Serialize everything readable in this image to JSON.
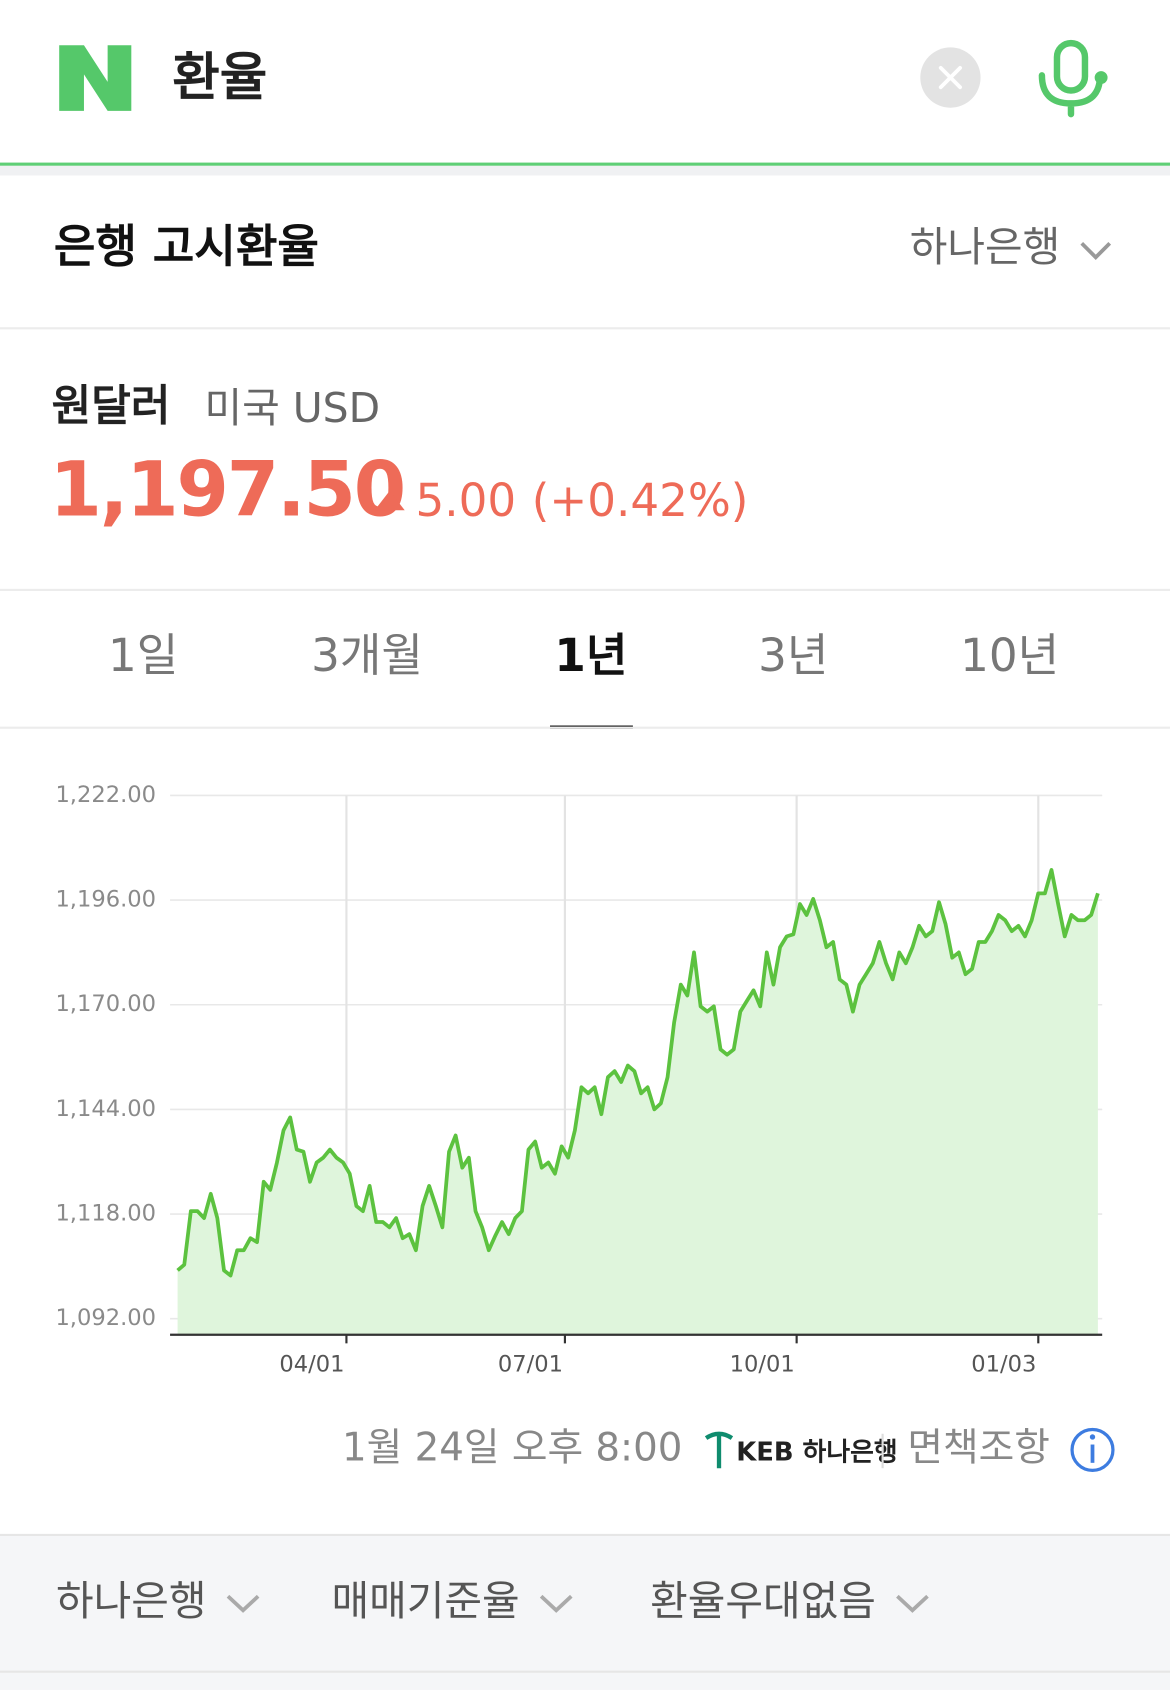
{
  "header": {
    "query": "환율"
  },
  "section": {
    "title": "은행 고시환율",
    "bank": "하나은행"
  },
  "quote": {
    "name": "원달러",
    "country": "미국 USD",
    "price": "1,197.50",
    "change": "5.00",
    "change_percent": "(+0.42%)"
  },
  "tabs": [
    {
      "label": "1일"
    },
    {
      "label": "3개월"
    },
    {
      "label": "1년",
      "selected": true
    },
    {
      "label": "3년"
    },
    {
      "label": "10년"
    }
  ],
  "chart_data": {
    "type": "line",
    "color": "#5cc23f",
    "fill": "#dff5dc",
    "grid": true,
    "values": [
      1104,
      1105.4,
      1118.7,
      1118.7,
      1117,
      1123,
      1117,
      1104,
      1102.7,
      1109,
      1109,
      1112,
      1111,
      1126,
      1124,
      1130.8,
      1138.8,
      1142,
      1134,
      1133.5,
      1126,
      1130.8,
      1132,
      1134,
      1132,
      1130.8,
      1128,
      1120,
      1118.7,
      1125,
      1116,
      1116,
      1114.7,
      1117,
      1112,
      1113,
      1109,
      1120,
      1125,
      1120,
      1114.7,
      1133.5,
      1137.5,
      1129.5,
      1132,
      1118.7,
      1114.7,
      1109,
      1112.7,
      1116,
      1113,
      1117,
      1118.7,
      1134,
      1136,
      1129.5,
      1130.8,
      1128,
      1134.8,
      1132,
      1138.8,
      1149.5,
      1148,
      1149.5,
      1142.8,
      1152,
      1153.5,
      1150.8,
      1154.9,
      1153.5,
      1148,
      1149.5,
      1144,
      1145.5,
      1152,
      1165.6,
      1175,
      1172.3,
      1183,
      1169.6,
      1168.3,
      1169.6,
      1158.9,
      1157.6,
      1158.9,
      1168.3,
      1171,
      1173.6,
      1169.6,
      1183,
      1175,
      1184.3,
      1187,
      1187.5,
      1195,
      1192.3,
      1196.3,
      1191,
      1184.3,
      1185.6,
      1176.3,
      1175,
      1168.3,
      1175,
      1177.6,
      1180.3,
      1185.6,
      1180.3,
      1176.3,
      1183,
      1180.3,
      1184.3,
      1189.6,
      1187,
      1188.3,
      1195.5,
      1190,
      1181.7,
      1183,
      1177.6,
      1178.9,
      1185.6,
      1185.6,
      1188.3,
      1192.3,
      1191,
      1188.3,
      1189.6,
      1187,
      1191,
      1197.7,
      1197.7,
      1203.5,
      1195,
      1187,
      1192.3,
      1191,
      1191,
      1192.3,
      1197.7
    ],
    "xlim": [
      0,
      139
    ],
    "xticks": [
      {
        "value": 25.5,
        "label": "04/01"
      },
      {
        "value": 58.5,
        "label": "07/01"
      },
      {
        "value": 93.5,
        "label": "10/01"
      },
      {
        "value": 130,
        "label": "01/03"
      }
    ],
    "ylim": [
      1088,
      1222
    ],
    "yticks": [
      {
        "value": 1092,
        "label": "1,092.00"
      },
      {
        "value": 1118,
        "label": "1,118.00"
      },
      {
        "value": 1144,
        "label": "1,144.00"
      },
      {
        "value": 1170,
        "label": "1,170.00"
      },
      {
        "value": 1196,
        "label": "1,196.00"
      },
      {
        "value": 1222,
        "label": "1,222.00"
      }
    ]
  },
  "footer": {
    "timestamp": "1월 24일 오후 8:00",
    "source": "KEB 하나은행",
    "disclaimer": "면책조항"
  },
  "filters": [
    "하나은행",
    "매매기준율",
    "환율우대없음"
  ]
}
